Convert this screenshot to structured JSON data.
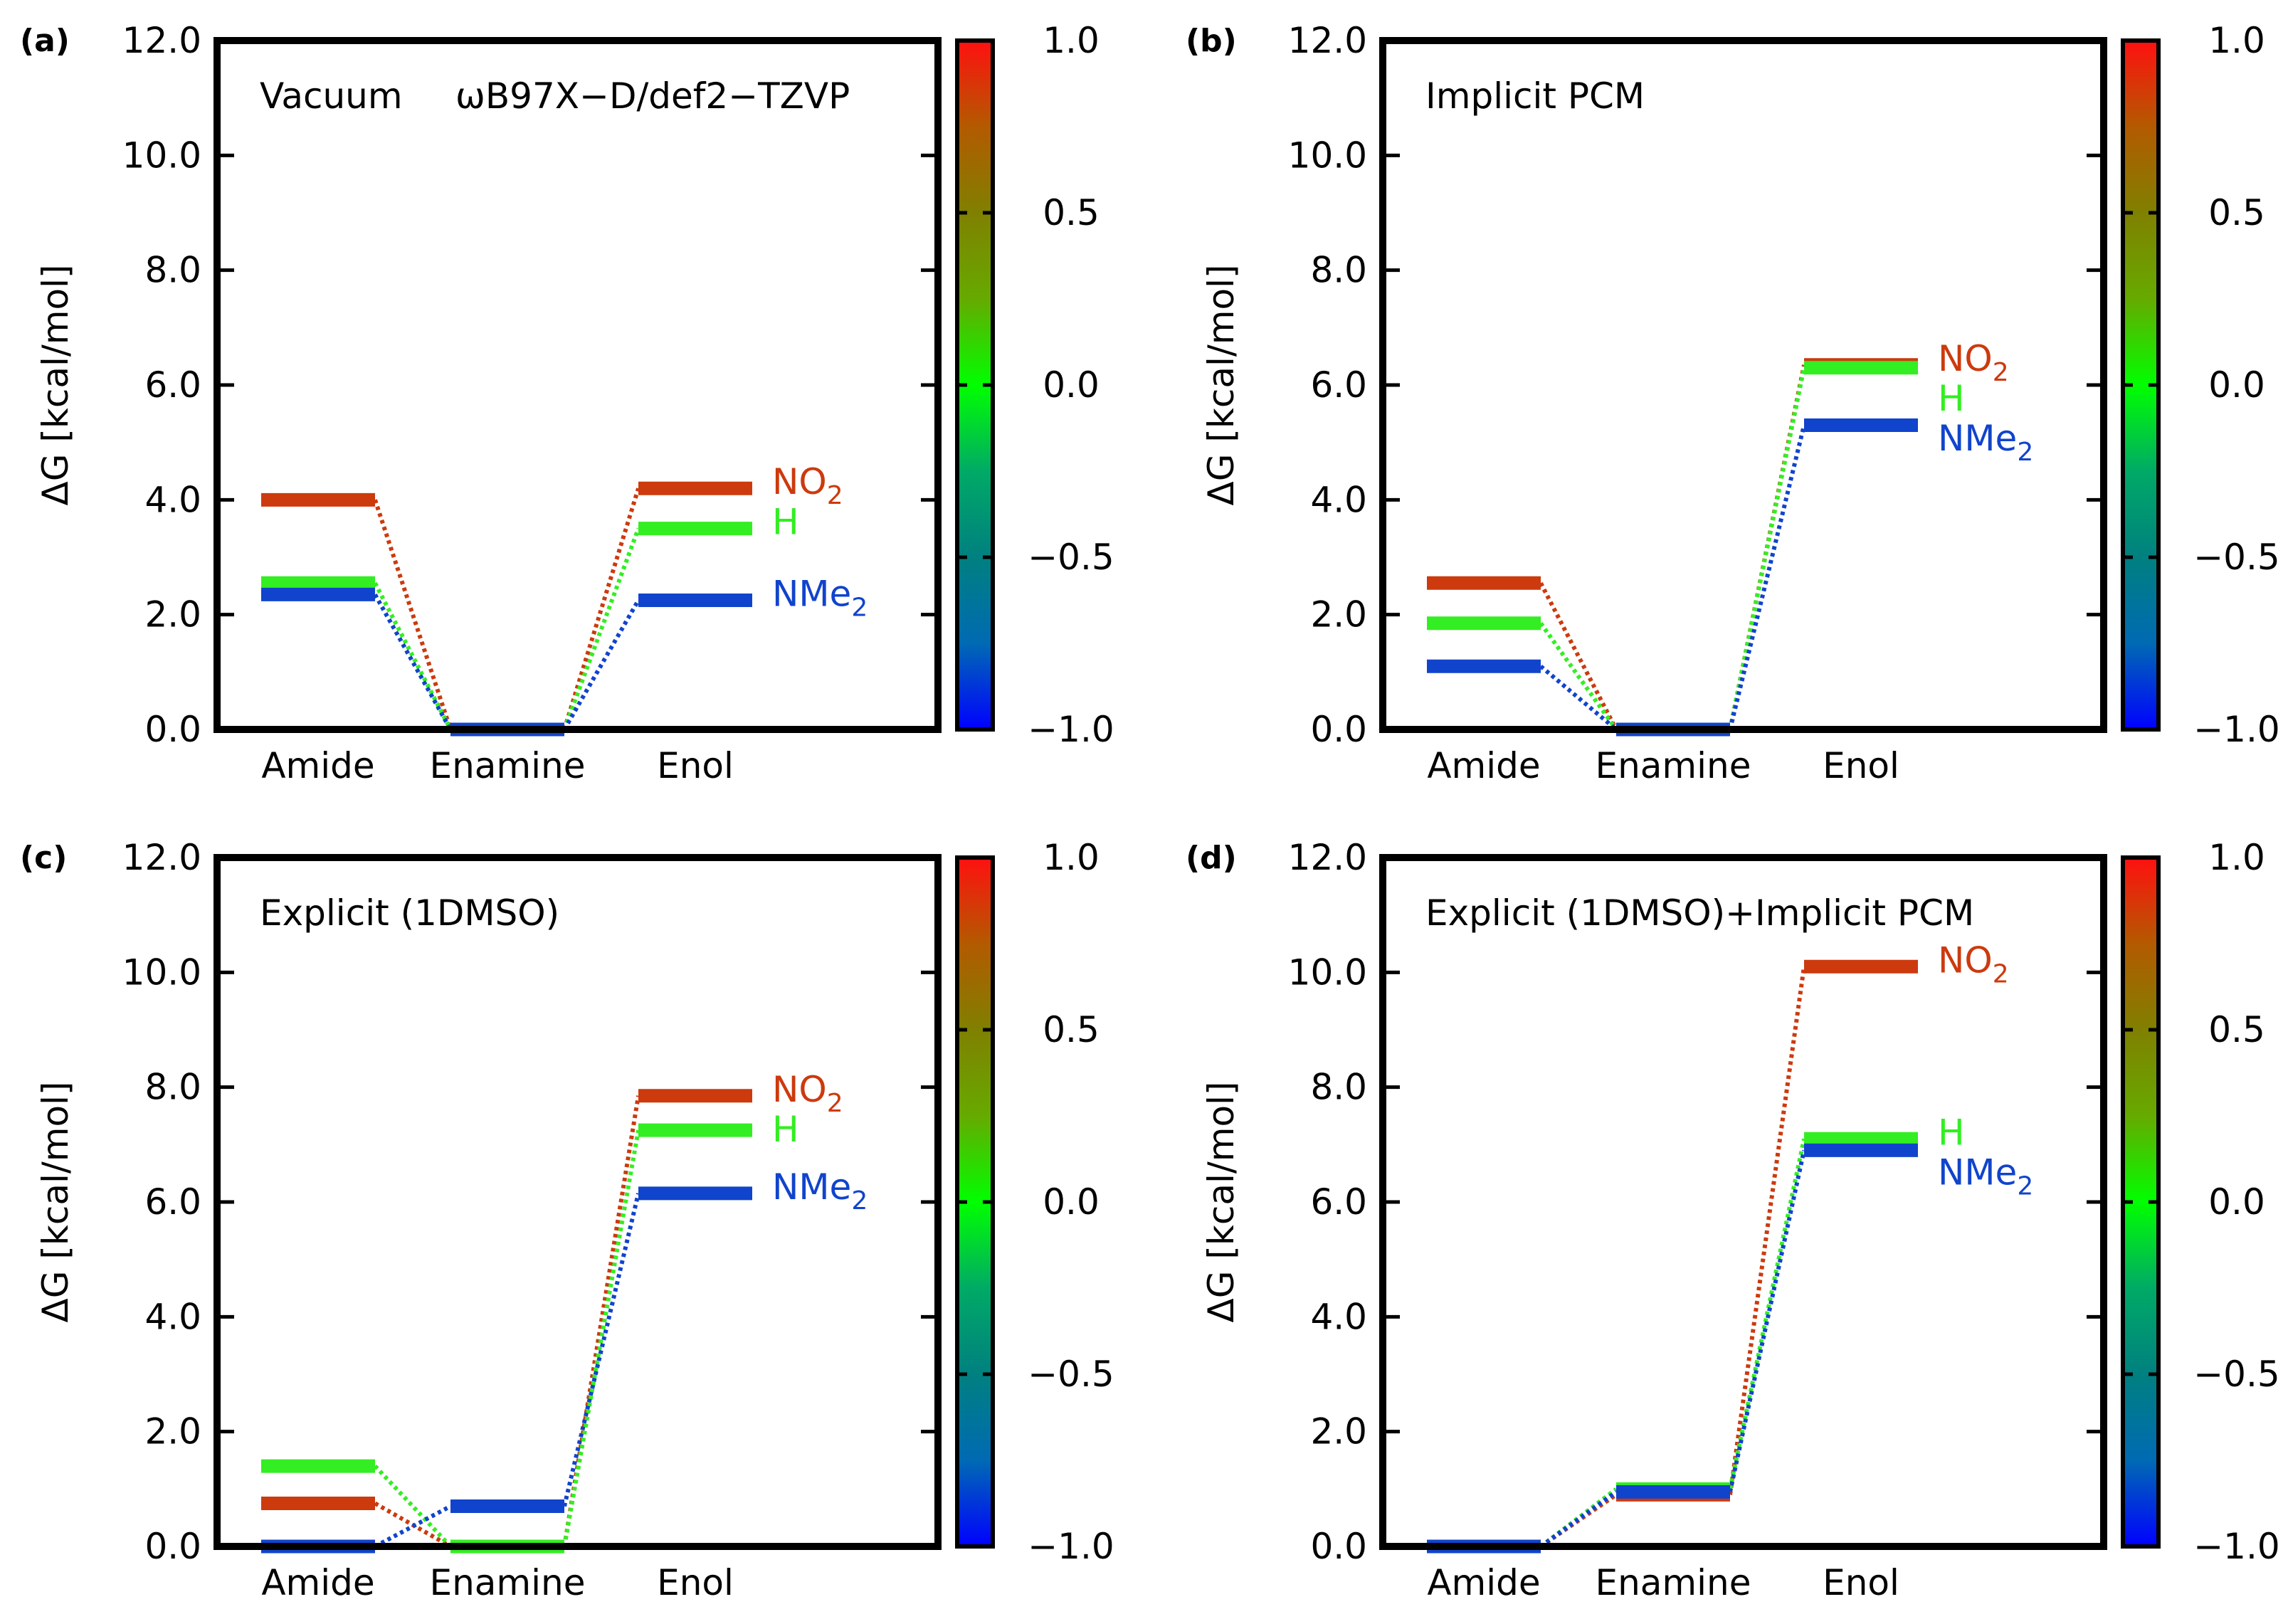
{
  "figure": {
    "colorbar": {
      "ticks": [
        "1.0",
        "0.5",
        "0.0",
        "−0.5",
        "−1.0"
      ],
      "values": [
        1.0,
        0.5,
        0.0,
        -0.5,
        -1.0
      ],
      "colors": [
        "#ff1010",
        "#b35a00",
        "#808000",
        "#66aa00",
        "#00ff00",
        "#00aa66",
        "#008080",
        "#006ab3",
        "#0000ff"
      ]
    },
    "species_colors": {
      "NO2": "#cc3a0e",
      "H": "#33ee22",
      "NMe2": "#1144cc"
    }
  },
  "chart_data": [
    {
      "type": "energy-level-diagram",
      "panel_label": "(a)",
      "title": "Vacuum",
      "method": "ωB97X−D/def2−TZVP",
      "ylabel": "ΔG [kcal/mol]",
      "ylim": [
        0,
        12
      ],
      "yticks": [
        "0.0",
        "2.0",
        "4.0",
        "6.0",
        "8.0",
        "10.0",
        "12.0"
      ],
      "categories": [
        "Amide",
        "Enamine",
        "Enol"
      ],
      "series": [
        {
          "name": "NO2",
          "label": "NO",
          "sub": "2",
          "values": [
            4.0,
            0.0,
            4.2
          ]
        },
        {
          "name": "H",
          "label": "H",
          "sub": "",
          "values": [
            2.55,
            0.0,
            3.5
          ]
        },
        {
          "name": "NMe2",
          "label": "NMe",
          "sub": "2",
          "values": [
            2.35,
            0.0,
            2.25
          ]
        }
      ]
    },
    {
      "type": "energy-level-diagram",
      "panel_label": "(b)",
      "title": "Implicit PCM",
      "method": "",
      "ylabel": "ΔG [kcal/mol]",
      "ylim": [
        0,
        12
      ],
      "yticks": [
        "0.0",
        "2.0",
        "4.0",
        "6.0",
        "8.0",
        "10.0",
        "12.0"
      ],
      "categories": [
        "Amide",
        "Enamine",
        "Enol"
      ],
      "series": [
        {
          "name": "NO2",
          "label": "NO",
          "sub": "2",
          "values": [
            2.55,
            0.0,
            6.35
          ]
        },
        {
          "name": "H",
          "label": "H",
          "sub": "",
          "values": [
            1.85,
            0.0,
            6.3
          ]
        },
        {
          "name": "NMe2",
          "label": "NMe",
          "sub": "2",
          "values": [
            1.1,
            0.0,
            5.3
          ]
        }
      ]
    },
    {
      "type": "energy-level-diagram",
      "panel_label": "(c)",
      "title": "Explicit (1DMSO)",
      "method": "",
      "ylabel": "ΔG [kcal/mol]",
      "ylim": [
        0,
        12
      ],
      "yticks": [
        "0.0",
        "2.0",
        "4.0",
        "6.0",
        "8.0",
        "10.0",
        "12.0"
      ],
      "categories": [
        "Amide",
        "Enamine",
        "Enol"
      ],
      "series": [
        {
          "name": "NO2",
          "label": "NO",
          "sub": "2",
          "values": [
            0.75,
            0.0,
            7.85
          ]
        },
        {
          "name": "H",
          "label": "H",
          "sub": "",
          "values": [
            1.4,
            0.0,
            7.25
          ]
        },
        {
          "name": "NMe2",
          "label": "NMe",
          "sub": "2",
          "values": [
            0.0,
            0.7,
            6.15
          ]
        }
      ]
    },
    {
      "type": "energy-level-diagram",
      "panel_label": "(d)",
      "title": "Explicit (1DMSO)+Implicit PCM",
      "method": "",
      "ylabel": "ΔG [kcal/mol]",
      "ylim": [
        0,
        12
      ],
      "yticks": [
        "0.0",
        "2.0",
        "4.0",
        "6.0",
        "8.0",
        "10.0",
        "12.0"
      ],
      "categories": [
        "Amide",
        "Enamine",
        "Enol"
      ],
      "series": [
        {
          "name": "NO2",
          "label": "NO",
          "sub": "2",
          "values": [
            0.0,
            0.9,
            10.1
          ]
        },
        {
          "name": "H",
          "label": "H",
          "sub": "",
          "values": [
            0.0,
            1.0,
            7.1
          ]
        },
        {
          "name": "NMe2",
          "label": "NMe",
          "sub": "2",
          "values": [
            0.0,
            0.95,
            6.9
          ]
        }
      ]
    }
  ]
}
